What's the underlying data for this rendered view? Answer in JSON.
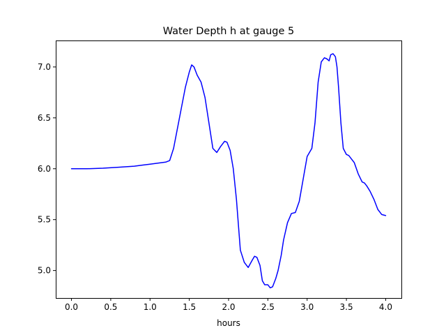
{
  "chart_data": {
    "type": "line",
    "title": "Water Depth h at gauge 5",
    "xlabel": "hours",
    "ylabel": "",
    "xlim": [
      -0.2,
      4.2
    ],
    "ylim": [
      4.73,
      7.26
    ],
    "x_ticks": [
      0.0,
      0.5,
      1.0,
      1.5,
      2.0,
      2.5,
      3.0,
      3.5,
      4.0
    ],
    "x_tick_labels": [
      "0.0",
      "0.5",
      "1.0",
      "1.5",
      "2.0",
      "2.5",
      "3.0",
      "3.5",
      "4.0"
    ],
    "y_ticks": [
      5.0,
      5.5,
      6.0,
      6.5,
      7.0
    ],
    "y_tick_labels": [
      "5.0",
      "5.5",
      "6.0",
      "6.5",
      "7.0"
    ],
    "grid": false,
    "series": [
      {
        "color": "#0000ff",
        "x": [
          0.0,
          0.2,
          0.4,
          0.6,
          0.8,
          0.9,
          1.0,
          1.1,
          1.2,
          1.25,
          1.3,
          1.35,
          1.4,
          1.45,
          1.5,
          1.53,
          1.56,
          1.6,
          1.65,
          1.7,
          1.75,
          1.8,
          1.85,
          1.9,
          1.95,
          1.98,
          2.02,
          2.06,
          2.1,
          2.15,
          2.2,
          2.25,
          2.3,
          2.33,
          2.36,
          2.4,
          2.43,
          2.46,
          2.5,
          2.53,
          2.56,
          2.6,
          2.63,
          2.67,
          2.7,
          2.75,
          2.8,
          2.85,
          2.9,
          2.95,
          3.0,
          3.03,
          3.06,
          3.1,
          3.14,
          3.18,
          3.22,
          3.25,
          3.28,
          3.3,
          3.33,
          3.36,
          3.38,
          3.4,
          3.43,
          3.46,
          3.5,
          3.53,
          3.56,
          3.6,
          3.65,
          3.7,
          3.73,
          3.76,
          3.8,
          3.85,
          3.9,
          3.95,
          4.0
        ],
        "y": [
          6.0,
          6.0,
          6.005,
          6.015,
          6.025,
          6.035,
          6.045,
          6.055,
          6.065,
          6.08,
          6.2,
          6.4,
          6.6,
          6.8,
          6.95,
          7.02,
          7.0,
          6.92,
          6.85,
          6.7,
          6.45,
          6.2,
          6.16,
          6.22,
          6.27,
          6.26,
          6.18,
          6.0,
          5.7,
          5.2,
          5.08,
          5.03,
          5.1,
          5.14,
          5.13,
          5.05,
          4.9,
          4.86,
          4.86,
          4.83,
          4.84,
          4.92,
          5.0,
          5.15,
          5.3,
          5.47,
          5.56,
          5.57,
          5.68,
          5.9,
          6.12,
          6.16,
          6.2,
          6.45,
          6.85,
          7.05,
          7.09,
          7.08,
          7.06,
          7.12,
          7.13,
          7.1,
          7.0,
          6.8,
          6.45,
          6.2,
          6.14,
          6.13,
          6.1,
          6.06,
          5.95,
          5.87,
          5.86,
          5.83,
          5.78,
          5.7,
          5.6,
          5.55,
          5.54
        ]
      }
    ]
  }
}
